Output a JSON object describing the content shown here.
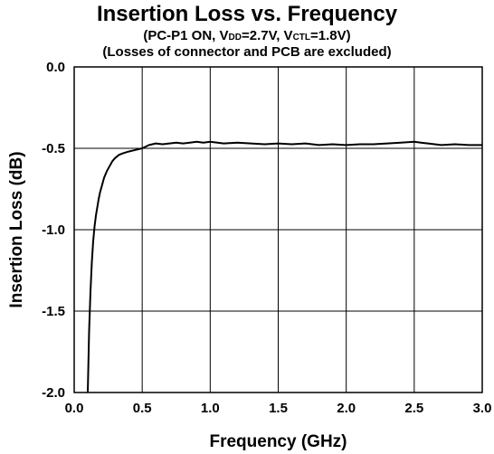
{
  "chart_data": {
    "type": "line",
    "title": "Insertion Loss vs. Frequency",
    "subtitle_1": {
      "pre": "(PC-P1 ON, V",
      "sub1": "DD",
      "mid": "=2.7V, V",
      "sub2": "CTL",
      "post": "=1.8V)"
    },
    "subtitle_2": "(Losses of connector and PCB are excluded)",
    "xlabel": "Frequency (GHz)",
    "ylabel": "Insertion Loss (dB)",
    "xlim": [
      0.0,
      3.0
    ],
    "ylim": [
      -2.0,
      0.0
    ],
    "x_ticks": [
      0.0,
      0.5,
      1.0,
      1.5,
      2.0,
      2.5,
      3.0
    ],
    "x_tick_labels": [
      "0.0",
      "0.5",
      "1.0",
      "1.5",
      "2.0",
      "2.5",
      "3.0"
    ],
    "y_ticks": [
      0.0,
      -0.5,
      -1.0,
      -1.5,
      -2.0
    ],
    "y_tick_labels": [
      "0.0",
      "-0.5",
      "-1.0",
      "-1.5",
      "-2.0"
    ],
    "grid": true,
    "series": [
      {
        "x": [
          0.1,
          0.11,
          0.12,
          0.13,
          0.14,
          0.15,
          0.16,
          0.17,
          0.18,
          0.19,
          0.2,
          0.22,
          0.24,
          0.26,
          0.28,
          0.3,
          0.33,
          0.36,
          0.4,
          0.45,
          0.5,
          0.55,
          0.6,
          0.65,
          0.7,
          0.75,
          0.8,
          0.85,
          0.9,
          0.95,
          1.0,
          1.1,
          1.2,
          1.3,
          1.4,
          1.5,
          1.6,
          1.7,
          1.8,
          1.9,
          2.0,
          2.1,
          2.2,
          2.3,
          2.4,
          2.5,
          2.55,
          2.6,
          2.7,
          2.8,
          2.9,
          3.0
        ],
        "y": [
          -2.0,
          -1.62,
          -1.38,
          -1.2,
          -1.07,
          -0.98,
          -0.91,
          -0.86,
          -0.81,
          -0.77,
          -0.74,
          -0.68,
          -0.64,
          -0.61,
          -0.58,
          -0.56,
          -0.54,
          -0.53,
          -0.52,
          -0.51,
          -0.5,
          -0.48,
          -0.47,
          -0.475,
          -0.47,
          -0.465,
          -0.47,
          -0.465,
          -0.46,
          -0.465,
          -0.46,
          -0.47,
          -0.465,
          -0.47,
          -0.475,
          -0.47,
          -0.475,
          -0.47,
          -0.48,
          -0.475,
          -0.48,
          -0.475,
          -0.475,
          -0.47,
          -0.465,
          -0.46,
          -0.465,
          -0.47,
          -0.48,
          -0.475,
          -0.48,
          -0.48
        ]
      }
    ]
  }
}
